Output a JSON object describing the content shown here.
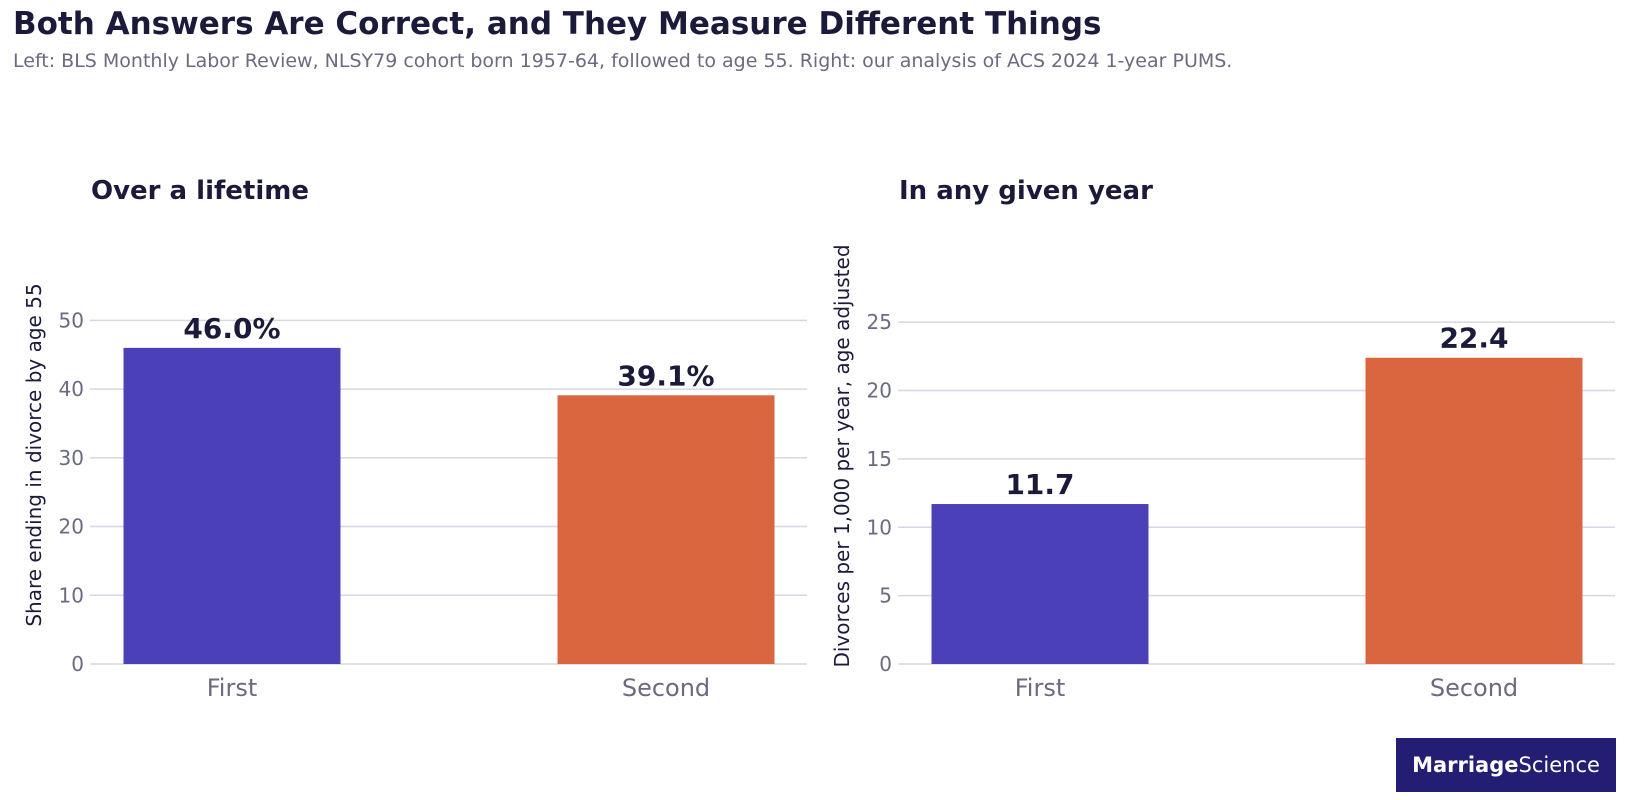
{
  "title": "Both Answers Are Correct, and They Measure Different Things",
  "subtitle": "Left: BLS Monthly Labor Review, NLSY79 cohort born 1957-64, followed to age 55. Right: our analysis of ACS 2024 1-year PUMS.",
  "logo": {
    "bold": "Marriage",
    "regular": "Science"
  },
  "colors": {
    "first": "#4b40b8",
    "second": "#da6640"
  },
  "chart_data": [
    {
      "type": "bar",
      "title": "Over a lifetime",
      "categories": [
        "First",
        "Second"
      ],
      "values": [
        46.0,
        39.1
      ],
      "data_labels": [
        "46.0%",
        "39.1%"
      ],
      "ylabel": "Share ending in divorce by age 55",
      "ylim": [
        0,
        55
      ],
      "yticks": [
        0,
        10,
        20,
        30,
        40,
        50
      ],
      "grid": true
    },
    {
      "type": "bar",
      "title": "In any given year",
      "categories": [
        "First",
        "Second"
      ],
      "values": [
        11.7,
        22.4
      ],
      "data_labels": [
        "11.7",
        "22.4"
      ],
      "ylabel": "Divorces per 1,000 per year, age adjusted",
      "ylim": [
        0,
        27.5
      ],
      "yticks": [
        0,
        5,
        10,
        15,
        20,
        25
      ],
      "grid": true
    }
  ]
}
